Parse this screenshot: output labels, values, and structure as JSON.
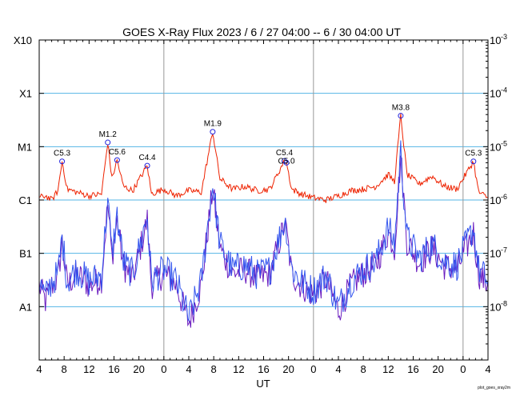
{
  "chart_data": {
    "type": "line",
    "title": "GOES X-Ray Flux   2023 /  6 / 27   04:00 --  6 / 30   04:00   UT",
    "xlabel": "UT",
    "y_scale": "log",
    "ylim": [
      1e-09,
      0.001
    ],
    "xlim": [
      "2023-06-27T04:00",
      "2023-06-30T04:00"
    ],
    "x_tick_labels": [
      "4",
      "8",
      "12",
      "16",
      "20",
      "0",
      "4",
      "8",
      "12",
      "16",
      "20",
      "0",
      "4",
      "8",
      "12",
      "16",
      "20",
      "0",
      "4"
    ],
    "x_tick_times": [
      "2023-06-27T04:00",
      "2023-06-27T08:00",
      "2023-06-27T12:00",
      "2023-06-27T16:00",
      "2023-06-27T20:00",
      "2023-06-28T00:00",
      "2023-06-28T04:00",
      "2023-06-28T08:00",
      "2023-06-28T12:00",
      "2023-06-28T16:00",
      "2023-06-28T20:00",
      "2023-06-29T00:00",
      "2023-06-29T04:00",
      "2023-06-29T08:00",
      "2023-06-29T12:00",
      "2023-06-29T16:00",
      "2023-06-29T20:00",
      "2023-06-30T00:00",
      "2023-06-30T04:00"
    ],
    "left_axis_labels": [
      {
        "label": "X10",
        "value": 0.001
      },
      {
        "label": "X1",
        "value": 0.0001
      },
      {
        "label": "M1",
        "value": 1e-05
      },
      {
        "label": "C1",
        "value": 1e-06
      },
      {
        "label": "B1",
        "value": 1e-07
      },
      {
        "label": "A1",
        "value": 1e-08
      }
    ],
    "right_axis_labels": [
      {
        "base": "10",
        "exp": "-3",
        "value": 0.001
      },
      {
        "base": "10",
        "exp": "-4",
        "value": 0.0001
      },
      {
        "base": "10",
        "exp": "-5",
        "value": 1e-05
      },
      {
        "base": "10",
        "exp": "-6",
        "value": 1e-06
      },
      {
        "base": "10",
        "exp": "-7",
        "value": 1e-07
      },
      {
        "base": "10",
        "exp": "-8",
        "value": 1e-08
      }
    ],
    "grid_levels": [
      0.0001,
      1e-05,
      1e-06,
      1e-07,
      1e-08
    ],
    "day_boundaries": [
      "2023-06-28T00:00",
      "2023-06-29T00:00",
      "2023-06-30T00:00"
    ],
    "colors": {
      "long_channel": "#ee2200",
      "short_channel_a": "#3355ee",
      "short_channel_b": "#6a1bbf",
      "grid": "#55b4e4",
      "day_line": "#999999",
      "flare_marker": "#2222dd"
    },
    "flares": [
      {
        "label": "C5.3",
        "time": "2023-06-27T07:40",
        "flux": 5.3e-06
      },
      {
        "label": "M1.2",
        "time": "2023-06-27T15:00",
        "flux": 1.2e-05
      },
      {
        "label": "C5.6",
        "time": "2023-06-27T16:30",
        "flux": 5.6e-06
      },
      {
        "label": "C4.4",
        "time": "2023-06-27T21:20",
        "flux": 4.4e-06
      },
      {
        "label": "M1.9",
        "time": "2023-06-28T07:50",
        "flux": 1.9e-05
      },
      {
        "label": "C5.4",
        "time": "2023-06-28T19:20",
        "flux": 5.4e-06
      },
      {
        "label": "C5.0",
        "time": "2023-06-28T19:40",
        "flux": 5e-06
      },
      {
        "label": "M3.8",
        "time": "2023-06-29T14:00",
        "flux": 3.8e-05
      },
      {
        "label": "C5.3",
        "time": "2023-06-30T01:40",
        "flux": 5.3e-06
      }
    ],
    "series": [
      {
        "channel": "long",
        "x": [
          "2023-06-27T04:00",
          "2023-06-27T05:00",
          "2023-06-27T06:00",
          "2023-06-27T07:00",
          "2023-06-27T07:40",
          "2023-06-27T08:30",
          "2023-06-27T10:00",
          "2023-06-27T12:00",
          "2023-06-27T14:00",
          "2023-06-27T15:00",
          "2023-06-27T15:40",
          "2023-06-27T16:30",
          "2023-06-27T17:30",
          "2023-06-27T19:00",
          "2023-06-27T21:20",
          "2023-06-27T22:00",
          "2023-06-28T00:00",
          "2023-06-28T02:00",
          "2023-06-28T04:00",
          "2023-06-28T06:00",
          "2023-06-28T07:50",
          "2023-06-28T09:00",
          "2023-06-28T11:00",
          "2023-06-28T13:00",
          "2023-06-28T15:00",
          "2023-06-28T17:00",
          "2023-06-28T19:20",
          "2023-06-28T19:40",
          "2023-06-28T20:30",
          "2023-06-28T22:00",
          "2023-06-29T00:00",
          "2023-06-29T02:00",
          "2023-06-29T04:00",
          "2023-06-29T06:00",
          "2023-06-29T08:00",
          "2023-06-29T10:00",
          "2023-06-29T12:00",
          "2023-06-29T13:00",
          "2023-06-29T14:00",
          "2023-06-29T15:00",
          "2023-06-29T17:00",
          "2023-06-29T19:00",
          "2023-06-29T21:00",
          "2023-06-29T23:00",
          "2023-06-30T01:40",
          "2023-06-30T02:30",
          "2023-06-30T04:00"
        ],
        "values": [
          1.1e-06,
          1.2e-06,
          1e-06,
          1.5e-06,
          5.3e-06,
          1.6e-06,
          1.4e-06,
          1.2e-06,
          1.3e-06,
          1.2e-05,
          2.5e-06,
          5.6e-06,
          1.8e-06,
          1.5e-06,
          4.4e-06,
          1.3e-06,
          1.6e-06,
          1.2e-06,
          1.5e-06,
          1.4e-06,
          1.9e-05,
          2.5e-06,
          1.6e-06,
          1.8e-06,
          1.5e-06,
          1.6e-06,
          5.4e-06,
          5e-06,
          1.6e-06,
          1.3e-06,
          1.1e-06,
          1e-06,
          1.2e-06,
          1.5e-06,
          1.6e-06,
          1.8e-06,
          3e-06,
          2.2e-06,
          3.8e-05,
          3e-06,
          2e-06,
          2.8e-06,
          1.8e-06,
          1.6e-06,
          5.3e-06,
          1.4e-06,
          1.1e-06
        ]
      },
      {
        "channel": "short",
        "x": [
          "2023-06-27T04:00",
          "2023-06-27T05:00",
          "2023-06-27T06:00",
          "2023-06-27T07:00",
          "2023-06-27T07:40",
          "2023-06-27T08:30",
          "2023-06-27T10:00",
          "2023-06-27T12:00",
          "2023-06-27T14:00",
          "2023-06-27T15:00",
          "2023-06-27T15:40",
          "2023-06-27T16:30",
          "2023-06-27T17:30",
          "2023-06-27T19:00",
          "2023-06-27T21:20",
          "2023-06-27T22:00",
          "2023-06-28T00:00",
          "2023-06-28T02:00",
          "2023-06-28T04:00",
          "2023-06-28T06:00",
          "2023-06-28T07:50",
          "2023-06-28T09:00",
          "2023-06-28T11:00",
          "2023-06-28T13:00",
          "2023-06-28T15:00",
          "2023-06-28T17:00",
          "2023-06-28T19:20",
          "2023-06-28T19:40",
          "2023-06-28T20:30",
          "2023-06-28T22:00",
          "2023-06-29T00:00",
          "2023-06-29T02:00",
          "2023-06-29T04:00",
          "2023-06-29T06:00",
          "2023-06-29T08:00",
          "2023-06-29T10:00",
          "2023-06-29T12:00",
          "2023-06-29T13:00",
          "2023-06-29T14:00",
          "2023-06-29T15:00",
          "2023-06-29T17:00",
          "2023-06-29T19:00",
          "2023-06-29T21:00",
          "2023-06-29T23:00",
          "2023-06-30T01:40",
          "2023-06-30T02:30",
          "2023-06-30T04:00"
        ],
        "values": [
          3e-08,
          1.5e-08,
          3e-08,
          4e-08,
          2e-07,
          3e-08,
          5e-08,
          3e-08,
          4e-08,
          1e-06,
          1e-07,
          5e-07,
          7e-08,
          4e-08,
          5e-07,
          3e-08,
          5e-08,
          3e-08,
          6e-09,
          3e-08,
          2e-06,
          1.5e-07,
          5e-08,
          6e-08,
          4e-08,
          5e-08,
          4e-07,
          3e-07,
          5e-08,
          3e-08,
          2e-08,
          4e-08,
          1e-08,
          3e-08,
          5e-08,
          7e-08,
          3e-07,
          1.5e-07,
          8e-06,
          2e-07,
          8e-08,
          1.5e-07,
          7e-08,
          6e-08,
          3e-07,
          5e-08,
          3e-08
        ]
      }
    ],
    "credit": "plot_goes_xray2m"
  }
}
